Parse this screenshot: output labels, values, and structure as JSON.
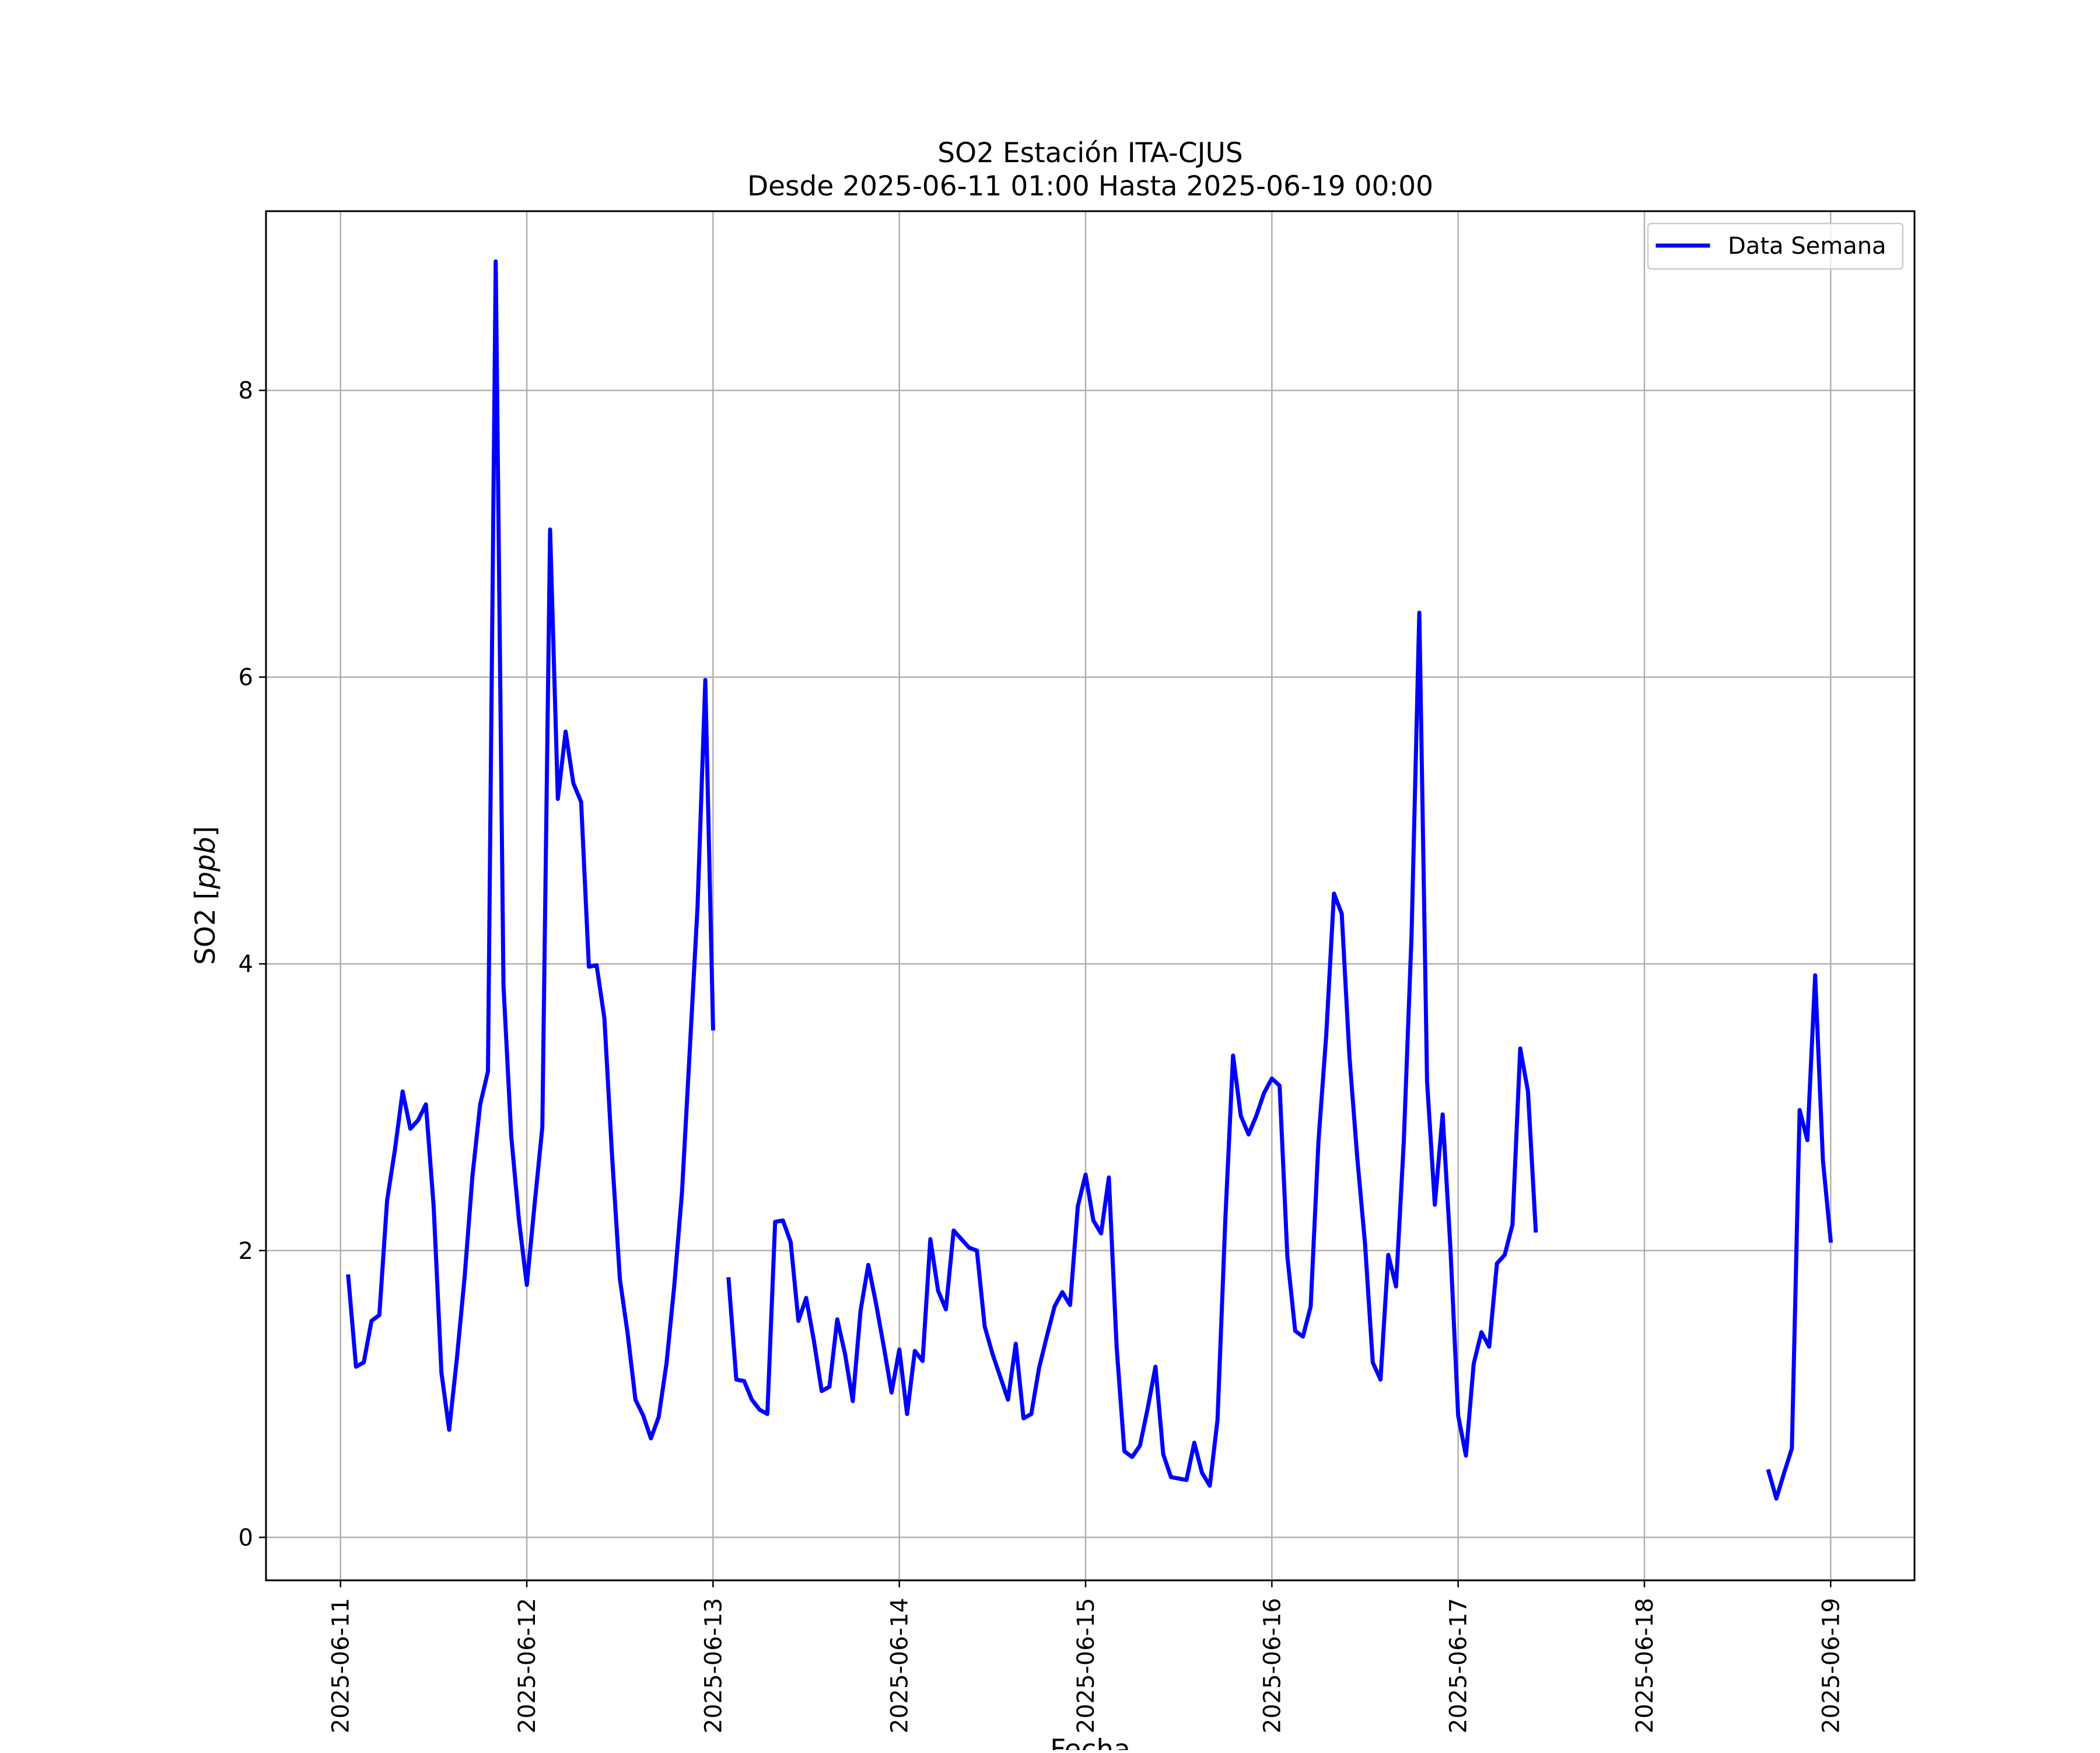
{
  "chart_data": {
    "type": "line",
    "title": "SO2 Estación ITA-CJUS",
    "subtitle": "Desde 2025-06-11 01:00 Hasta 2025-06-19 00:00",
    "xlabel": "Fecha",
    "ylabel_main": "SO2 [",
    "ylabel_unit": "ppb",
    "ylabel_close": "]",
    "xlim": [
      "2025-06-10T14:24",
      "2025-06-19T10:48"
    ],
    "ylim": [
      -0.3,
      9.25
    ],
    "x_ticks": [
      "2025-06-11",
      "2025-06-12",
      "2025-06-13",
      "2025-06-14",
      "2025-06-15",
      "2025-06-16",
      "2025-06-17",
      "2025-06-18",
      "2025-06-19"
    ],
    "y_ticks": [
      0,
      2,
      4,
      6,
      8
    ],
    "grid": true,
    "legend_position": "upper right",
    "series": [
      {
        "name": "Data Semana",
        "color": "#0000ff",
        "points": [
          [
            "2025-06-11T01:00",
            1.82
          ],
          [
            "2025-06-11T02:00",
            1.19
          ],
          [
            "2025-06-11T03:00",
            1.22
          ],
          [
            "2025-06-11T04:00",
            1.51
          ],
          [
            "2025-06-11T05:00",
            1.55
          ],
          [
            "2025-06-11T06:00",
            2.35
          ],
          [
            "2025-06-11T07:00",
            2.7
          ],
          [
            "2025-06-11T08:00",
            3.11
          ],
          [
            "2025-06-11T09:00",
            2.85
          ],
          [
            "2025-06-11T10:00",
            2.91
          ],
          [
            "2025-06-11T11:00",
            3.02
          ],
          [
            "2025-06-11T12:00",
            2.31
          ],
          [
            "2025-06-11T13:00",
            1.15
          ],
          [
            "2025-06-11T14:00",
            0.75
          ],
          [
            "2025-06-11T15:00",
            1.25
          ],
          [
            "2025-06-11T16:00",
            1.82
          ],
          [
            "2025-06-11T17:00",
            2.52
          ],
          [
            "2025-06-11T18:00",
            3.02
          ],
          [
            "2025-06-11T19:00",
            3.25
          ],
          [
            "2025-06-11T20:00",
            8.9
          ],
          [
            "2025-06-11T21:00",
            3.85
          ],
          [
            "2025-06-11T22:00",
            2.8
          ],
          [
            "2025-06-11T23:00",
            2.21
          ],
          [
            "2025-06-12T00:00",
            1.76
          ],
          [
            "2025-06-12T01:00",
            2.32
          ],
          [
            "2025-06-12T02:00",
            2.86
          ],
          [
            "2025-06-12T03:00",
            7.03
          ],
          [
            "2025-06-12T04:00",
            5.15
          ],
          [
            "2025-06-12T05:00",
            5.62
          ],
          [
            "2025-06-12T06:00",
            5.26
          ],
          [
            "2025-06-12T07:00",
            5.13
          ],
          [
            "2025-06-12T08:00",
            3.98
          ],
          [
            "2025-06-12T09:00",
            3.99
          ],
          [
            "2025-06-12T10:00",
            3.62
          ],
          [
            "2025-06-12T11:00",
            2.65
          ],
          [
            "2025-06-12T12:00",
            1.8
          ],
          [
            "2025-06-12T13:00",
            1.42
          ],
          [
            "2025-06-12T14:00",
            0.96
          ],
          [
            "2025-06-12T15:00",
            0.85
          ],
          [
            "2025-06-12T16:00",
            0.69
          ],
          [
            "2025-06-12T17:00",
            0.84
          ],
          [
            "2025-06-12T18:00",
            1.21
          ],
          [
            "2025-06-12T19:00",
            1.75
          ],
          [
            "2025-06-12T20:00",
            2.41
          ],
          [
            "2025-06-12T21:00",
            3.4
          ],
          [
            "2025-06-12T22:00",
            4.4
          ],
          [
            "2025-06-12T23:00",
            5.98
          ],
          [
            "2025-06-13T00:00",
            3.55
          ],
          null,
          [
            "2025-06-13T02:00",
            1.8
          ],
          [
            "2025-06-13T03:00",
            1.1
          ],
          [
            "2025-06-13T04:00",
            1.09
          ],
          [
            "2025-06-13T05:00",
            0.96
          ],
          [
            "2025-06-13T06:00",
            0.89
          ],
          [
            "2025-06-13T07:00",
            0.86
          ],
          [
            "2025-06-13T08:00",
            2.2
          ],
          [
            "2025-06-13T09:00",
            2.21
          ],
          [
            "2025-06-13T10:00",
            2.06
          ],
          [
            "2025-06-13T11:00",
            1.51
          ],
          [
            "2025-06-13T12:00",
            1.67
          ],
          [
            "2025-06-13T13:00",
            1.37
          ],
          [
            "2025-06-13T14:00",
            1.02
          ],
          [
            "2025-06-13T15:00",
            1.05
          ],
          [
            "2025-06-13T16:00",
            1.52
          ],
          [
            "2025-06-13T17:00",
            1.28
          ],
          [
            "2025-06-13T18:00",
            0.95
          ],
          [
            "2025-06-13T19:00",
            1.58
          ],
          [
            "2025-06-13T20:00",
            1.9
          ],
          [
            "2025-06-13T21:00",
            1.63
          ],
          [
            "2025-06-13T22:00",
            1.33
          ],
          [
            "2025-06-13T23:00",
            1.01
          ],
          [
            "2025-06-14T00:00",
            1.31
          ],
          [
            "2025-06-14T01:00",
            0.86
          ],
          [
            "2025-06-14T02:00",
            1.3
          ],
          [
            "2025-06-14T03:00",
            1.23
          ],
          [
            "2025-06-14T04:00",
            2.08
          ],
          [
            "2025-06-14T05:00",
            1.72
          ],
          [
            "2025-06-14T06:00",
            1.59
          ],
          [
            "2025-06-14T07:00",
            2.14
          ],
          [
            "2025-06-14T08:00",
            2.08
          ],
          [
            "2025-06-14T09:00",
            2.02
          ],
          [
            "2025-06-14T10:00",
            2.0
          ],
          [
            "2025-06-14T11:00",
            1.47
          ],
          [
            "2025-06-14T12:00",
            1.28
          ],
          [
            "2025-06-14T13:00",
            1.12
          ],
          [
            "2025-06-14T14:00",
            0.96
          ],
          [
            "2025-06-14T15:00",
            1.35
          ],
          [
            "2025-06-14T16:00",
            0.83
          ],
          [
            "2025-06-14T17:00",
            0.86
          ],
          [
            "2025-06-14T18:00",
            1.18
          ],
          [
            "2025-06-14T19:00",
            1.4
          ],
          [
            "2025-06-14T20:00",
            1.61
          ],
          [
            "2025-06-14T21:00",
            1.71
          ],
          [
            "2025-06-14T22:00",
            1.62
          ],
          [
            "2025-06-14T23:00",
            2.31
          ],
          [
            "2025-06-15T00:00",
            2.53
          ],
          [
            "2025-06-15T01:00",
            2.21
          ],
          [
            "2025-06-15T02:00",
            2.12
          ],
          [
            "2025-06-15T03:00",
            2.51
          ],
          [
            "2025-06-15T04:00",
            1.33
          ],
          [
            "2025-06-15T05:00",
            0.6
          ],
          [
            "2025-06-15T06:00",
            0.56
          ],
          [
            "2025-06-15T07:00",
            0.64
          ],
          [
            "2025-06-15T08:00",
            0.9
          ],
          [
            "2025-06-15T09:00",
            1.19
          ],
          [
            "2025-06-15T10:00",
            0.58
          ],
          [
            "2025-06-15T11:00",
            0.42
          ],
          [
            "2025-06-15T12:00",
            0.41
          ],
          [
            "2025-06-15T13:00",
            0.4
          ],
          [
            "2025-06-15T14:00",
            0.66
          ],
          [
            "2025-06-15T15:00",
            0.45
          ],
          [
            "2025-06-15T16:00",
            0.36
          ],
          [
            "2025-06-15T17:00",
            0.82
          ],
          [
            "2025-06-15T18:00",
            2.21
          ],
          [
            "2025-06-15T19:00",
            3.36
          ],
          [
            "2025-06-15T20:00",
            2.94
          ],
          [
            "2025-06-15T21:00",
            2.81
          ],
          [
            "2025-06-15T22:00",
            2.94
          ],
          [
            "2025-06-15T23:00",
            3.1
          ],
          [
            "2025-06-16T00:00",
            3.2
          ],
          [
            "2025-06-16T01:00",
            3.15
          ],
          [
            "2025-06-16T02:00",
            1.96
          ],
          [
            "2025-06-16T03:00",
            1.44
          ],
          [
            "2025-06-16T04:00",
            1.4
          ],
          [
            "2025-06-16T05:00",
            1.61
          ],
          [
            "2025-06-16T06:00",
            2.76
          ],
          [
            "2025-06-16T07:00",
            3.5
          ],
          [
            "2025-06-16T08:00",
            4.49
          ],
          [
            "2025-06-16T09:00",
            4.35
          ],
          [
            "2025-06-16T10:00",
            3.35
          ],
          [
            "2025-06-16T11:00",
            2.65
          ],
          [
            "2025-06-16T12:00",
            2.05
          ],
          [
            "2025-06-16T13:00",
            1.22
          ],
          [
            "2025-06-16T14:00",
            1.1
          ],
          [
            "2025-06-16T15:00",
            1.97
          ],
          [
            "2025-06-16T16:00",
            1.75
          ],
          [
            "2025-06-16T17:00",
            2.76
          ],
          [
            "2025-06-16T18:00",
            4.2
          ],
          [
            "2025-06-16T19:00",
            6.45
          ],
          [
            "2025-06-16T20:00",
            3.18
          ],
          [
            "2025-06-16T21:00",
            2.32
          ],
          [
            "2025-06-16T22:00",
            2.95
          ],
          [
            "2025-06-16T23:00",
            2.02
          ],
          [
            "2025-06-17T00:00",
            0.85
          ],
          [
            "2025-06-17T01:00",
            0.57
          ],
          [
            "2025-06-17T02:00",
            1.21
          ],
          [
            "2025-06-17T03:00",
            1.43
          ],
          [
            "2025-06-17T04:00",
            1.33
          ],
          [
            "2025-06-17T05:00",
            1.91
          ],
          [
            "2025-06-17T06:00",
            1.97
          ],
          [
            "2025-06-17T07:00",
            2.18
          ],
          [
            "2025-06-17T08:00",
            3.41
          ],
          [
            "2025-06-17T09:00",
            3.11
          ],
          [
            "2025-06-17T10:00",
            2.14
          ],
          null,
          [
            "2025-06-18T16:00",
            0.46
          ],
          [
            "2025-06-18T17:00",
            0.27
          ],
          [
            "2025-06-18T18:00",
            0.45
          ],
          [
            "2025-06-18T19:00",
            0.62
          ],
          [
            "2025-06-18T20:00",
            2.98
          ],
          [
            "2025-06-18T21:00",
            2.77
          ],
          [
            "2025-06-18T22:00",
            3.92
          ],
          [
            "2025-06-18T23:00",
            2.63
          ],
          [
            "2025-06-19T00:00",
            2.07
          ]
        ]
      }
    ]
  }
}
